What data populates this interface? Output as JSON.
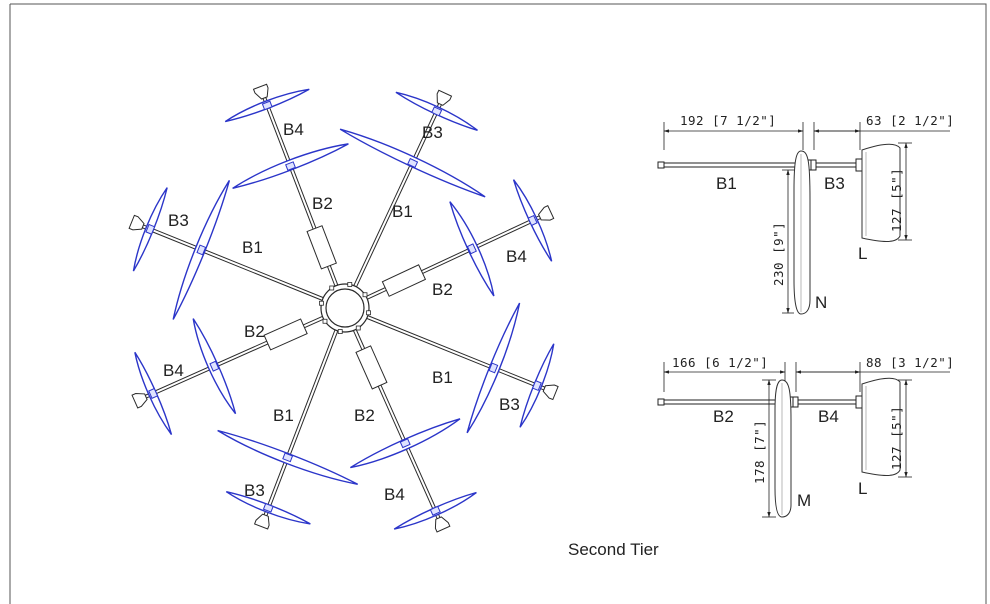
{
  "caption": "Second Tier",
  "colors": {
    "blade_edge": "#2b35c9",
    "line": "#2a2a2a"
  },
  "radial_labels": {
    "a": "B4",
    "b": "B3",
    "c": "B2",
    "d": "B1",
    "e": "B3",
    "f": "B1",
    "g": "B4",
    "h": "B2",
    "i": "B2",
    "j": "B1",
    "k": "B4",
    "l": "B3",
    "m": "B1",
    "n": "B2",
    "o": "B3",
    "p": "B4"
  },
  "detail_top": {
    "dim_left": "192 [7 1/2\"]",
    "dim_right": "63 [2 1/2\"]",
    "dim_vert_long": "230 [9\"]",
    "dim_vert_short": "127 [5\"]",
    "arm_left": "B1",
    "arm_right": "B3",
    "blade_long": "N",
    "blade_short": "L"
  },
  "detail_bottom": {
    "dim_left": "166 [6 1/2\"]",
    "dim_right": "88 [3 1/2\"]",
    "dim_vert_long": "178 [7\"]",
    "dim_vert_short": "127 [5\"]",
    "arm_left": "B2",
    "arm_right": "B4",
    "blade_long": "M",
    "blade_short": "L"
  }
}
